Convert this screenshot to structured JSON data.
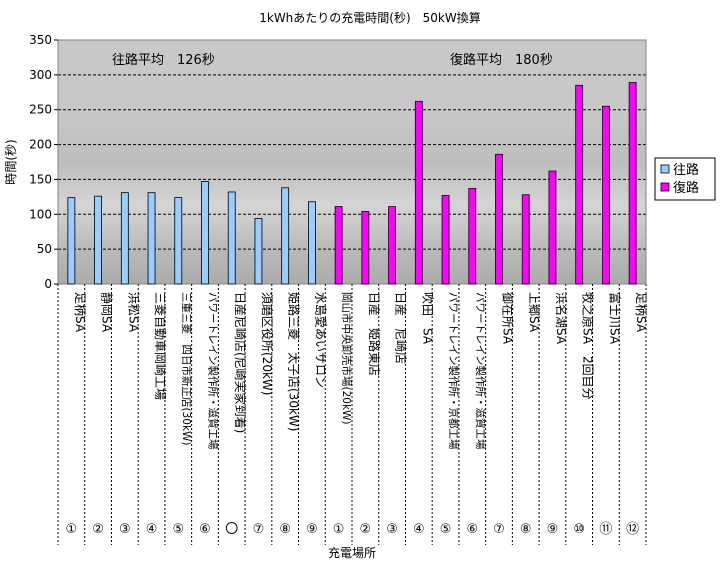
{
  "chart_data": {
    "type": "bar",
    "title": "1kWhあたりの充電時間(秒)　50kW換算",
    "xlabel": "充電場所",
    "ylabel": "時間(秒)",
    "ylim": [
      0,
      350
    ],
    "yticks": [
      0,
      50,
      100,
      150,
      200,
      250,
      300,
      350
    ],
    "grid": true,
    "legend_position": "right",
    "categories": [
      "足柄SA",
      "静岡SA",
      "浜松SA",
      "三菱自動車岡崎工場",
      "三重三菱　四日市新正店(30kW)",
      "パワートレイン製作所・滋賀工場",
      "日産尼崎店(尼崎実家到着)",
      "須磨区役所(20kW)",
      "姫路三菱　太子店(30kW)",
      "水島愛あいサロン",
      "岡山市中央卸売市場(20kW)",
      "日産　姫路東店",
      "日産　尼崎店",
      "吹田　SA",
      "パワートレイン製作所・京都工場",
      "パワートレイン製作所・滋賀工場",
      "御在所SA",
      "上郷SA",
      "浜名湖SA",
      "牧之原SA　2回目分",
      "富士川SA",
      "足柄SA"
    ],
    "numbers": [
      "①",
      "②",
      "③",
      "④",
      "⑤",
      "⑥",
      "〇",
      "⑦",
      "⑧",
      "⑨",
      "①",
      "②",
      "③",
      "④",
      "⑤",
      "⑥",
      "⑦",
      "⑧",
      "⑨",
      "⑩",
      "⑪",
      "⑫"
    ],
    "series": [
      {
        "name": "往路",
        "color": "#99ccff",
        "values": [
          124,
          126,
          131,
          131,
          124,
          147,
          132,
          94,
          138,
          118,
          null,
          null,
          null,
          null,
          null,
          null,
          null,
          null,
          null,
          null,
          null,
          null
        ]
      },
      {
        "name": "復路",
        "color": "#ff00ff",
        "values": [
          null,
          null,
          null,
          null,
          null,
          null,
          null,
          null,
          null,
          null,
          111,
          104,
          111,
          262,
          127,
          137,
          186,
          128,
          162,
          285,
          255,
          289
        ]
      }
    ],
    "annotations": [
      {
        "text": "往路平均　126秒"
      },
      {
        "text": "復路平均　180秒"
      }
    ],
    "legend": [
      "往路",
      "復路"
    ]
  }
}
